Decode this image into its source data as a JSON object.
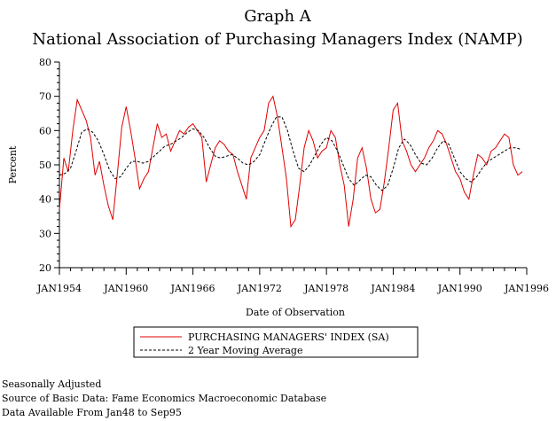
{
  "chart_data": {
    "type": "line",
    "title": "Graph A",
    "subtitle": "National Association of Purchasing Managers Index (NAMP)",
    "xlabel": "Date of Observation",
    "ylabel": "Percent",
    "xlim": [
      1954.0,
      1996.0
    ],
    "ylim": [
      20,
      80
    ],
    "y_ticks": [
      "20",
      "30",
      "40",
      "50",
      "60",
      "70",
      "80"
    ],
    "x_ticks": [
      {
        "label": "JAN1954",
        "value": 1954
      },
      {
        "label": "JAN1960",
        "value": 1960
      },
      {
        "label": "JAN1966",
        "value": 1966
      },
      {
        "label": "JAN1972",
        "value": 1972
      },
      {
        "label": "JAN1978",
        "value": 1978
      },
      {
        "label": "JAN1984",
        "value": 1984
      },
      {
        "label": "JAN1990",
        "value": 1990
      },
      {
        "label": "JAN1996",
        "value": 1996
      }
    ],
    "legend_position": "bottom",
    "series": [
      {
        "name": "PURCHASING MANAGERS' INDEX (SA)",
        "style": "solid",
        "color": "#e00000",
        "x": [
          1954.0,
          1954.4,
          1954.8,
          1955.2,
          1955.6,
          1956.0,
          1956.4,
          1956.8,
          1957.2,
          1957.6,
          1958.0,
          1958.4,
          1958.8,
          1959.2,
          1959.6,
          1960.0,
          1960.4,
          1960.8,
          1961.2,
          1961.6,
          1962.0,
          1962.4,
          1962.8,
          1963.2,
          1963.6,
          1964.0,
          1964.4,
          1964.8,
          1965.2,
          1965.6,
          1966.0,
          1966.4,
          1966.8,
          1967.2,
          1967.6,
          1968.0,
          1968.4,
          1968.8,
          1969.2,
          1969.6,
          1970.0,
          1970.4,
          1970.8,
          1971.2,
          1971.6,
          1972.0,
          1972.4,
          1972.8,
          1973.2,
          1973.6,
          1974.0,
          1974.4,
          1974.8,
          1975.2,
          1975.6,
          1976.0,
          1976.4,
          1976.8,
          1977.2,
          1977.6,
          1978.0,
          1978.4,
          1978.8,
          1979.2,
          1979.6,
          1980.0,
          1980.4,
          1980.8,
          1981.2,
          1981.6,
          1982.0,
          1982.4,
          1982.8,
          1983.2,
          1983.6,
          1984.0,
          1984.4,
          1984.8,
          1985.2,
          1985.6,
          1986.0,
          1986.4,
          1986.8,
          1987.2,
          1987.6,
          1988.0,
          1988.4,
          1988.8,
          1989.2,
          1989.6,
          1990.0,
          1990.4,
          1990.8,
          1991.2,
          1991.6,
          1992.0,
          1992.4,
          1992.8,
          1993.2,
          1993.6,
          1994.0,
          1994.4,
          1994.8,
          1995.2,
          1995.6
        ],
        "y": [
          37,
          52,
          48,
          60,
          69,
          66,
          63,
          58,
          47,
          51,
          44,
          38,
          34,
          47,
          61,
          67,
          60,
          52,
          43,
          46,
          48,
          55,
          62,
          58,
          59,
          54,
          57,
          60,
          59,
          61,
          62,
          60,
          58,
          45,
          50,
          55,
          57,
          56,
          54,
          53,
          48,
          44,
          40,
          52,
          55,
          58,
          60,
          68,
          70,
          64,
          55,
          46,
          32,
          34,
          44,
          55,
          60,
          57,
          52,
          54,
          55,
          60,
          58,
          50,
          44,
          32,
          40,
          52,
          55,
          49,
          40,
          36,
          37,
          45,
          55,
          66,
          68,
          57,
          54,
          50,
          48,
          50,
          52,
          55,
          57,
          60,
          59,
          56,
          52,
          48,
          46,
          42,
          40,
          47,
          53,
          52,
          50,
          54,
          55,
          57,
          59,
          58,
          50,
          47,
          48
        ]
      },
      {
        "name": "2 Year Moving Average",
        "style": "dashed",
        "color": "#000000",
        "x": [
          1954.0,
          1954.5,
          1955.0,
          1955.5,
          1956.0,
          1956.5,
          1957.0,
          1957.5,
          1958.0,
          1958.5,
          1959.0,
          1959.5,
          1960.0,
          1960.5,
          1961.0,
          1961.5,
          1962.0,
          1962.5,
          1963.0,
          1963.5,
          1964.0,
          1964.5,
          1965.0,
          1965.5,
          1966.0,
          1966.5,
          1967.0,
          1967.5,
          1968.0,
          1968.5,
          1969.0,
          1969.5,
          1970.0,
          1970.5,
          1971.0,
          1971.5,
          1972.0,
          1972.5,
          1973.0,
          1973.5,
          1974.0,
          1974.5,
          1975.0,
          1975.5,
          1976.0,
          1976.5,
          1977.0,
          1977.5,
          1978.0,
          1978.5,
          1979.0,
          1979.5,
          1980.0,
          1980.5,
          1981.0,
          1981.5,
          1982.0,
          1982.5,
          1983.0,
          1983.5,
          1984.0,
          1984.5,
          1985.0,
          1985.5,
          1986.0,
          1986.5,
          1987.0,
          1987.5,
          1988.0,
          1988.5,
          1989.0,
          1989.5,
          1990.0,
          1990.5,
          1991.0,
          1991.5,
          1992.0,
          1992.5,
          1993.0,
          1993.5,
          1994.0,
          1994.5,
          1995.0,
          1995.5
        ],
        "y": [
          47,
          47.5,
          49,
          54,
          59.5,
          60.5,
          59.5,
          57,
          53,
          48.5,
          46,
          46.5,
          49,
          51,
          51,
          50.5,
          51,
          52.5,
          54,
          55.5,
          56,
          57,
          58,
          59.5,
          60.5,
          60,
          58,
          55,
          52.5,
          52,
          52.5,
          53,
          52,
          50.5,
          50,
          51,
          53,
          57,
          61,
          64,
          64,
          60,
          54,
          49,
          48,
          50,
          53,
          56,
          58,
          57,
          54,
          50,
          46,
          44,
          45.5,
          47,
          46.5,
          44,
          42.5,
          44,
          49,
          55,
          57.5,
          56,
          53,
          50.5,
          50,
          52,
          55,
          57,
          56,
          52,
          48,
          46,
          45,
          46.5,
          49,
          51,
          52,
          53,
          54,
          55,
          55,
          54.5
        ]
      }
    ]
  },
  "notes": [
    "Seasonally Adjusted",
    "Source of Basic Data: Fame Economics Macroeconomic Database",
    "Data Available From Jan48 to Sep95"
  ]
}
